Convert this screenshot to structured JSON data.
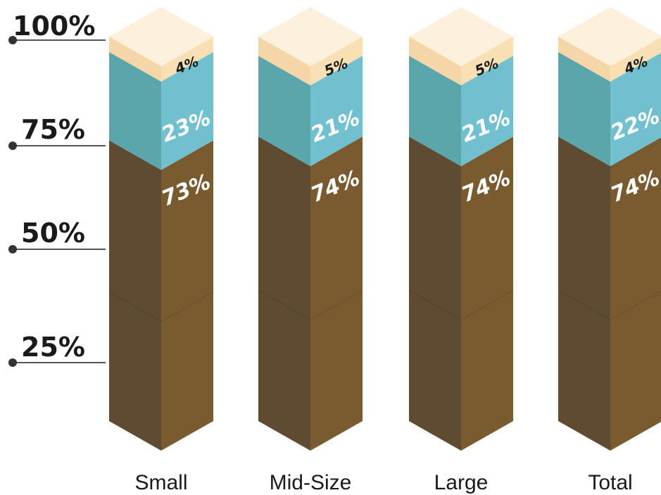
{
  "chart_data": {
    "type": "bar",
    "stacked": true,
    "categories": [
      "Small",
      "Mid-Size",
      "Large",
      "Total"
    ],
    "series": [
      {
        "values": [
          73,
          74,
          74,
          74
        ],
        "labels": [
          "73%",
          "74%",
          "74%",
          "74%"
        ]
      },
      {
        "values": [
          23,
          21,
          21,
          22
        ],
        "labels": [
          "23%",
          "21%",
          "21%",
          "22%"
        ]
      },
      {
        "values": [
          4,
          5,
          5,
          4
        ],
        "labels": [
          "4%",
          "5%",
          "5%",
          "4%"
        ]
      }
    ],
    "yticks": [
      "25%",
      "50%",
      "75%",
      "100%"
    ],
    "ylim": [
      0,
      100
    ],
    "colors": {
      "base_left": "#5f4b31",
      "base_right": "#7a5b30",
      "mid_left": "#5ba6aa",
      "mid_right": "#70c0cf",
      "top_left": "#f4d6a8",
      "top_right": "#f9dfb4",
      "top_face": "#fdf0dc",
      "label_light": "#ffffff",
      "label_dark": "#1a1a1a",
      "axis": "#555555"
    }
  }
}
